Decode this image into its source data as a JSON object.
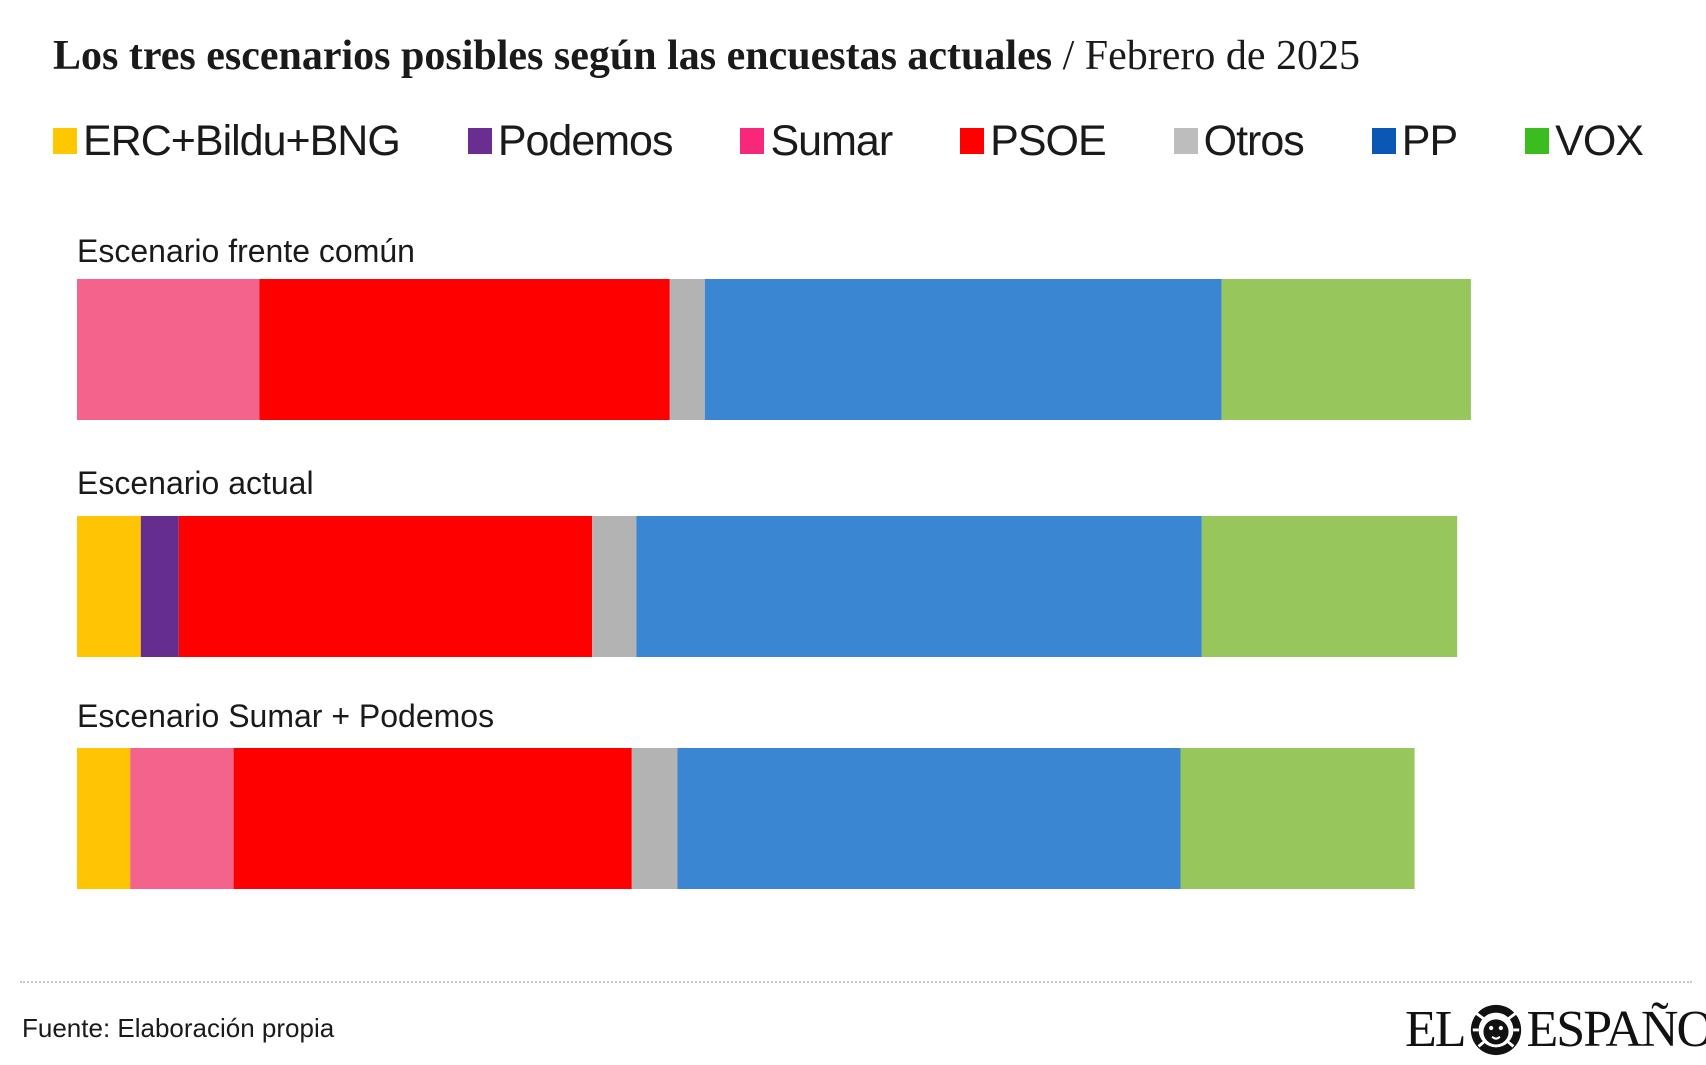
{
  "header": {
    "title_bold": "Los tres escenarios posibles según las encuestas actuales",
    "title_sep": " / ",
    "title_light": "Febrero de 2025"
  },
  "legend": [
    {
      "label": "ERC+Bildu+BNG",
      "color": "#ffc700"
    },
    {
      "label": "Podemos",
      "color": "#6a2d91"
    },
    {
      "label": "Sumar",
      "color": "#f7277c"
    },
    {
      "label": "PSOE",
      "color": "#ff0000"
    },
    {
      "label": "Otros",
      "color": "#bdbdbd"
    },
    {
      "label": "PP",
      "color": "#0a57b5"
    },
    {
      "label": "VOX",
      "color": "#3cbd1f"
    }
  ],
  "chart_data": {
    "type": "bar",
    "orientation": "horizontal",
    "stacked": true,
    "xlim": [
      0,
      100
    ],
    "grid": false,
    "legend_position": "top",
    "segment_colors": {
      "ERC+Bildu+BNG": "#ffc505",
      "Podemos": "#662d91",
      "Sumar": "#f4638c",
      "PSOE": "#ff0000",
      "Otros": "#b3b3b3",
      "PP": "#3b86d3",
      "VOX": "#97c65d"
    },
    "scenarios": [
      {
        "label": "Escenario frente común",
        "segments": [
          {
            "series": "Sumar",
            "value": 12.0
          },
          {
            "series": "PSOE",
            "value": 27.0
          },
          {
            "series": "Otros",
            "value": 2.3
          },
          {
            "series": "PP",
            "value": 34.0
          },
          {
            "series": "VOX",
            "value": 16.4
          }
        ]
      },
      {
        "label": "Escenario actual",
        "segments": [
          {
            "series": "ERC+Bildu+BNG",
            "value": 4.2
          },
          {
            "series": "Podemos",
            "value": 2.5
          },
          {
            "series": "PSOE",
            "value": 27.2
          },
          {
            "series": "Otros",
            "value": 2.9
          },
          {
            "series": "PP",
            "value": 37.2
          },
          {
            "series": "VOX",
            "value": 16.8
          }
        ]
      },
      {
        "label": "Escenario Sumar + Podemos",
        "segments": [
          {
            "series": "ERC+Bildu+BNG",
            "value": 3.5
          },
          {
            "series": "Sumar",
            "value": 6.8
          },
          {
            "series": "PSOE",
            "value": 26.2
          },
          {
            "series": "Otros",
            "value": 3.0
          },
          {
            "series": "PP",
            "value": 33.1
          },
          {
            "series": "VOX",
            "value": 15.4
          }
        ]
      }
    ]
  },
  "footer": {
    "source": "Fuente: Elaboración propia",
    "logo_left": "EL",
    "logo_right": "ESPAÑOL"
  }
}
